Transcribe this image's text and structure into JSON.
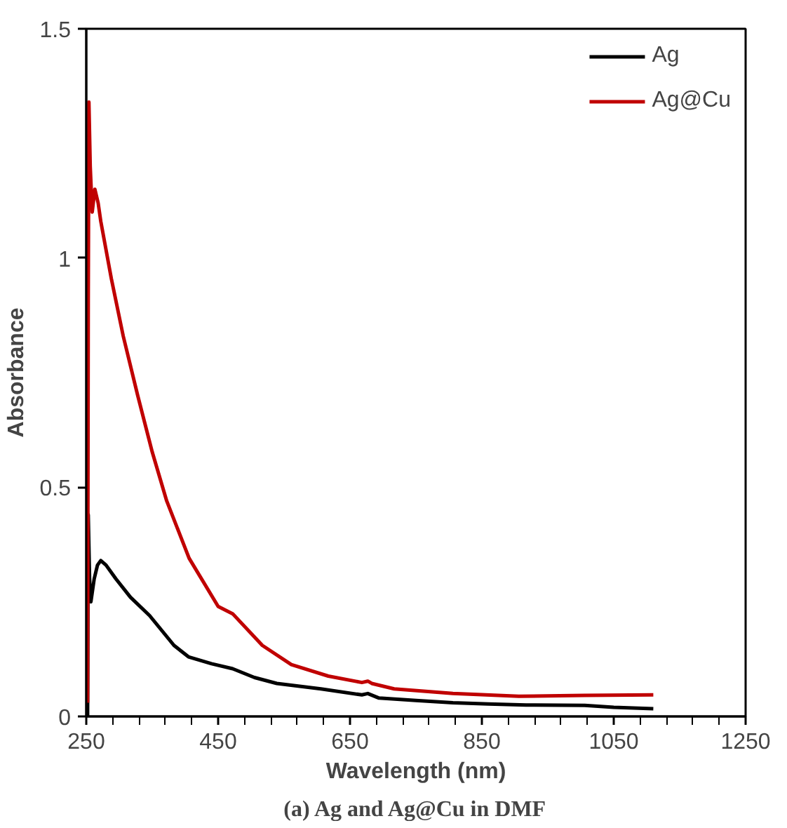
{
  "chart_data": {
    "type": "line",
    "title": "(a) Ag and Ag@Cu in DMF",
    "xlabel": "Wavelength (nm)",
    "ylabel": "Absorbance",
    "xlim": [
      250,
      1250
    ],
    "xticks": [
      250,
      450,
      650,
      850,
      1050,
      1250
    ],
    "ylim": [
      0,
      1.5
    ],
    "yticks": [
      0,
      0.5,
      1,
      1.5
    ],
    "grid": false,
    "legend": "top right",
    "marker": "none",
    "line_style": "solid",
    "series": [
      {
        "name": "Ag",
        "color": "#000000",
        "x": [
          252,
          253,
          255,
          257,
          262,
          267,
          272,
          280,
          295,
          317,
          346,
          383,
          405,
          440,
          472,
          505,
          539,
          606,
          668,
          677,
          694,
          750,
          806,
          860,
          917,
          1006,
          1050,
          1110
        ],
        "values": [
          0,
          0.44,
          0.3,
          0.25,
          0.3,
          0.33,
          0.34,
          0.33,
          0.3,
          0.26,
          0.22,
          0.155,
          0.13,
          0.115,
          0.104,
          0.085,
          0.072,
          0.06,
          0.047,
          0.05,
          0.04,
          0.035,
          0.03,
          0.027,
          0.025,
          0.024,
          0.02,
          0.017
        ]
      },
      {
        "name": "Ag@Cu",
        "color": "#c00000",
        "x": [
          252,
          253,
          254,
          256,
          259,
          263,
          268,
          272,
          288,
          306,
          328,
          350,
          372,
          406,
          450,
          472,
          517,
          561,
          617,
          668,
          677,
          683,
          717,
          806,
          906,
          1006,
          1110
        ],
        "values": [
          0.03,
          0.9,
          1.34,
          1.2,
          1.1,
          1.15,
          1.12,
          1.08,
          0.955,
          0.83,
          0.7,
          0.577,
          0.47,
          0.345,
          0.24,
          0.224,
          0.155,
          0.113,
          0.088,
          0.074,
          0.077,
          0.072,
          0.06,
          0.05,
          0.044,
          0.046,
          0.047
        ]
      }
    ]
  }
}
